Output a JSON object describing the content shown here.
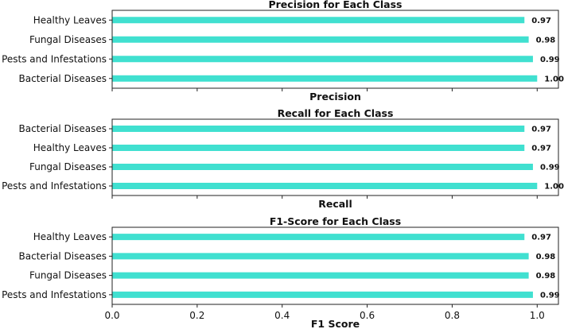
{
  "chart_data": [
    {
      "type": "bar",
      "orientation": "horizontal",
      "title": "Precision for Each Class",
      "xlabel": "Precision",
      "categories": [
        "Healthy Leaves",
        "Fungal Diseases",
        "Pests and Infestations",
        "Bacterial Diseases"
      ],
      "values": [
        0.97,
        0.98,
        0.99,
        1.0
      ],
      "value_labels": [
        "0.97",
        "0.98",
        "0.99",
        "1.00"
      ],
      "xlim": [
        0,
        1.05
      ],
      "bar_color": "#40e0d0"
    },
    {
      "type": "bar",
      "orientation": "horizontal",
      "title": "Recall for Each Class",
      "xlabel": "Recall",
      "categories": [
        "Bacterial Diseases",
        "Healthy Leaves",
        "Fungal Diseases",
        "Pests and Infestations"
      ],
      "values": [
        0.97,
        0.97,
        0.99,
        1.0
      ],
      "value_labels": [
        "0.97",
        "0.97",
        "0.99",
        "1.00"
      ],
      "xlim": [
        0,
        1.05
      ],
      "bar_color": "#40e0d0"
    },
    {
      "type": "bar",
      "orientation": "horizontal",
      "title": "F1-Score for Each Class",
      "xlabel": "F1 Score",
      "categories": [
        "Healthy Leaves",
        "Bacterial Diseases",
        "Fungal Diseases",
        "Pests and Infestations"
      ],
      "values": [
        0.97,
        0.98,
        0.98,
        0.99
      ],
      "value_labels": [
        "0.97",
        "0.98",
        "0.98",
        "0.99"
      ],
      "xlim": [
        0,
        1.05
      ],
      "bar_color": "#40e0d0",
      "xticks": [
        "0.0",
        "0.2",
        "0.4",
        "0.6",
        "0.8",
        "1.0"
      ]
    }
  ]
}
